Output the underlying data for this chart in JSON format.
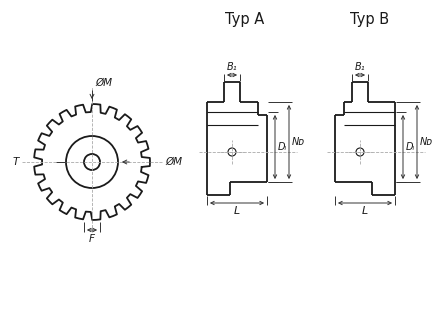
{
  "bg_color": "#ffffff",
  "line_color": "#1a1a1a",
  "dim_color": "#333333",
  "center_line_color": "#aaaaaa",
  "title_A": "Typ A",
  "title_B": "Typ B",
  "label_OM_top": "ØM",
  "label_OM_right": "ØM",
  "label_F": "F",
  "label_T": "T",
  "label_B1_A": "B₁",
  "label_B1_B": "B₁",
  "label_DL_A": "Dₗ",
  "label_ND_A": "Nᴅ",
  "label_DL_B": "Dₗ",
  "label_ND_B": "Nᴅ",
  "label_L_A": "L",
  "label_L_B": "L"
}
